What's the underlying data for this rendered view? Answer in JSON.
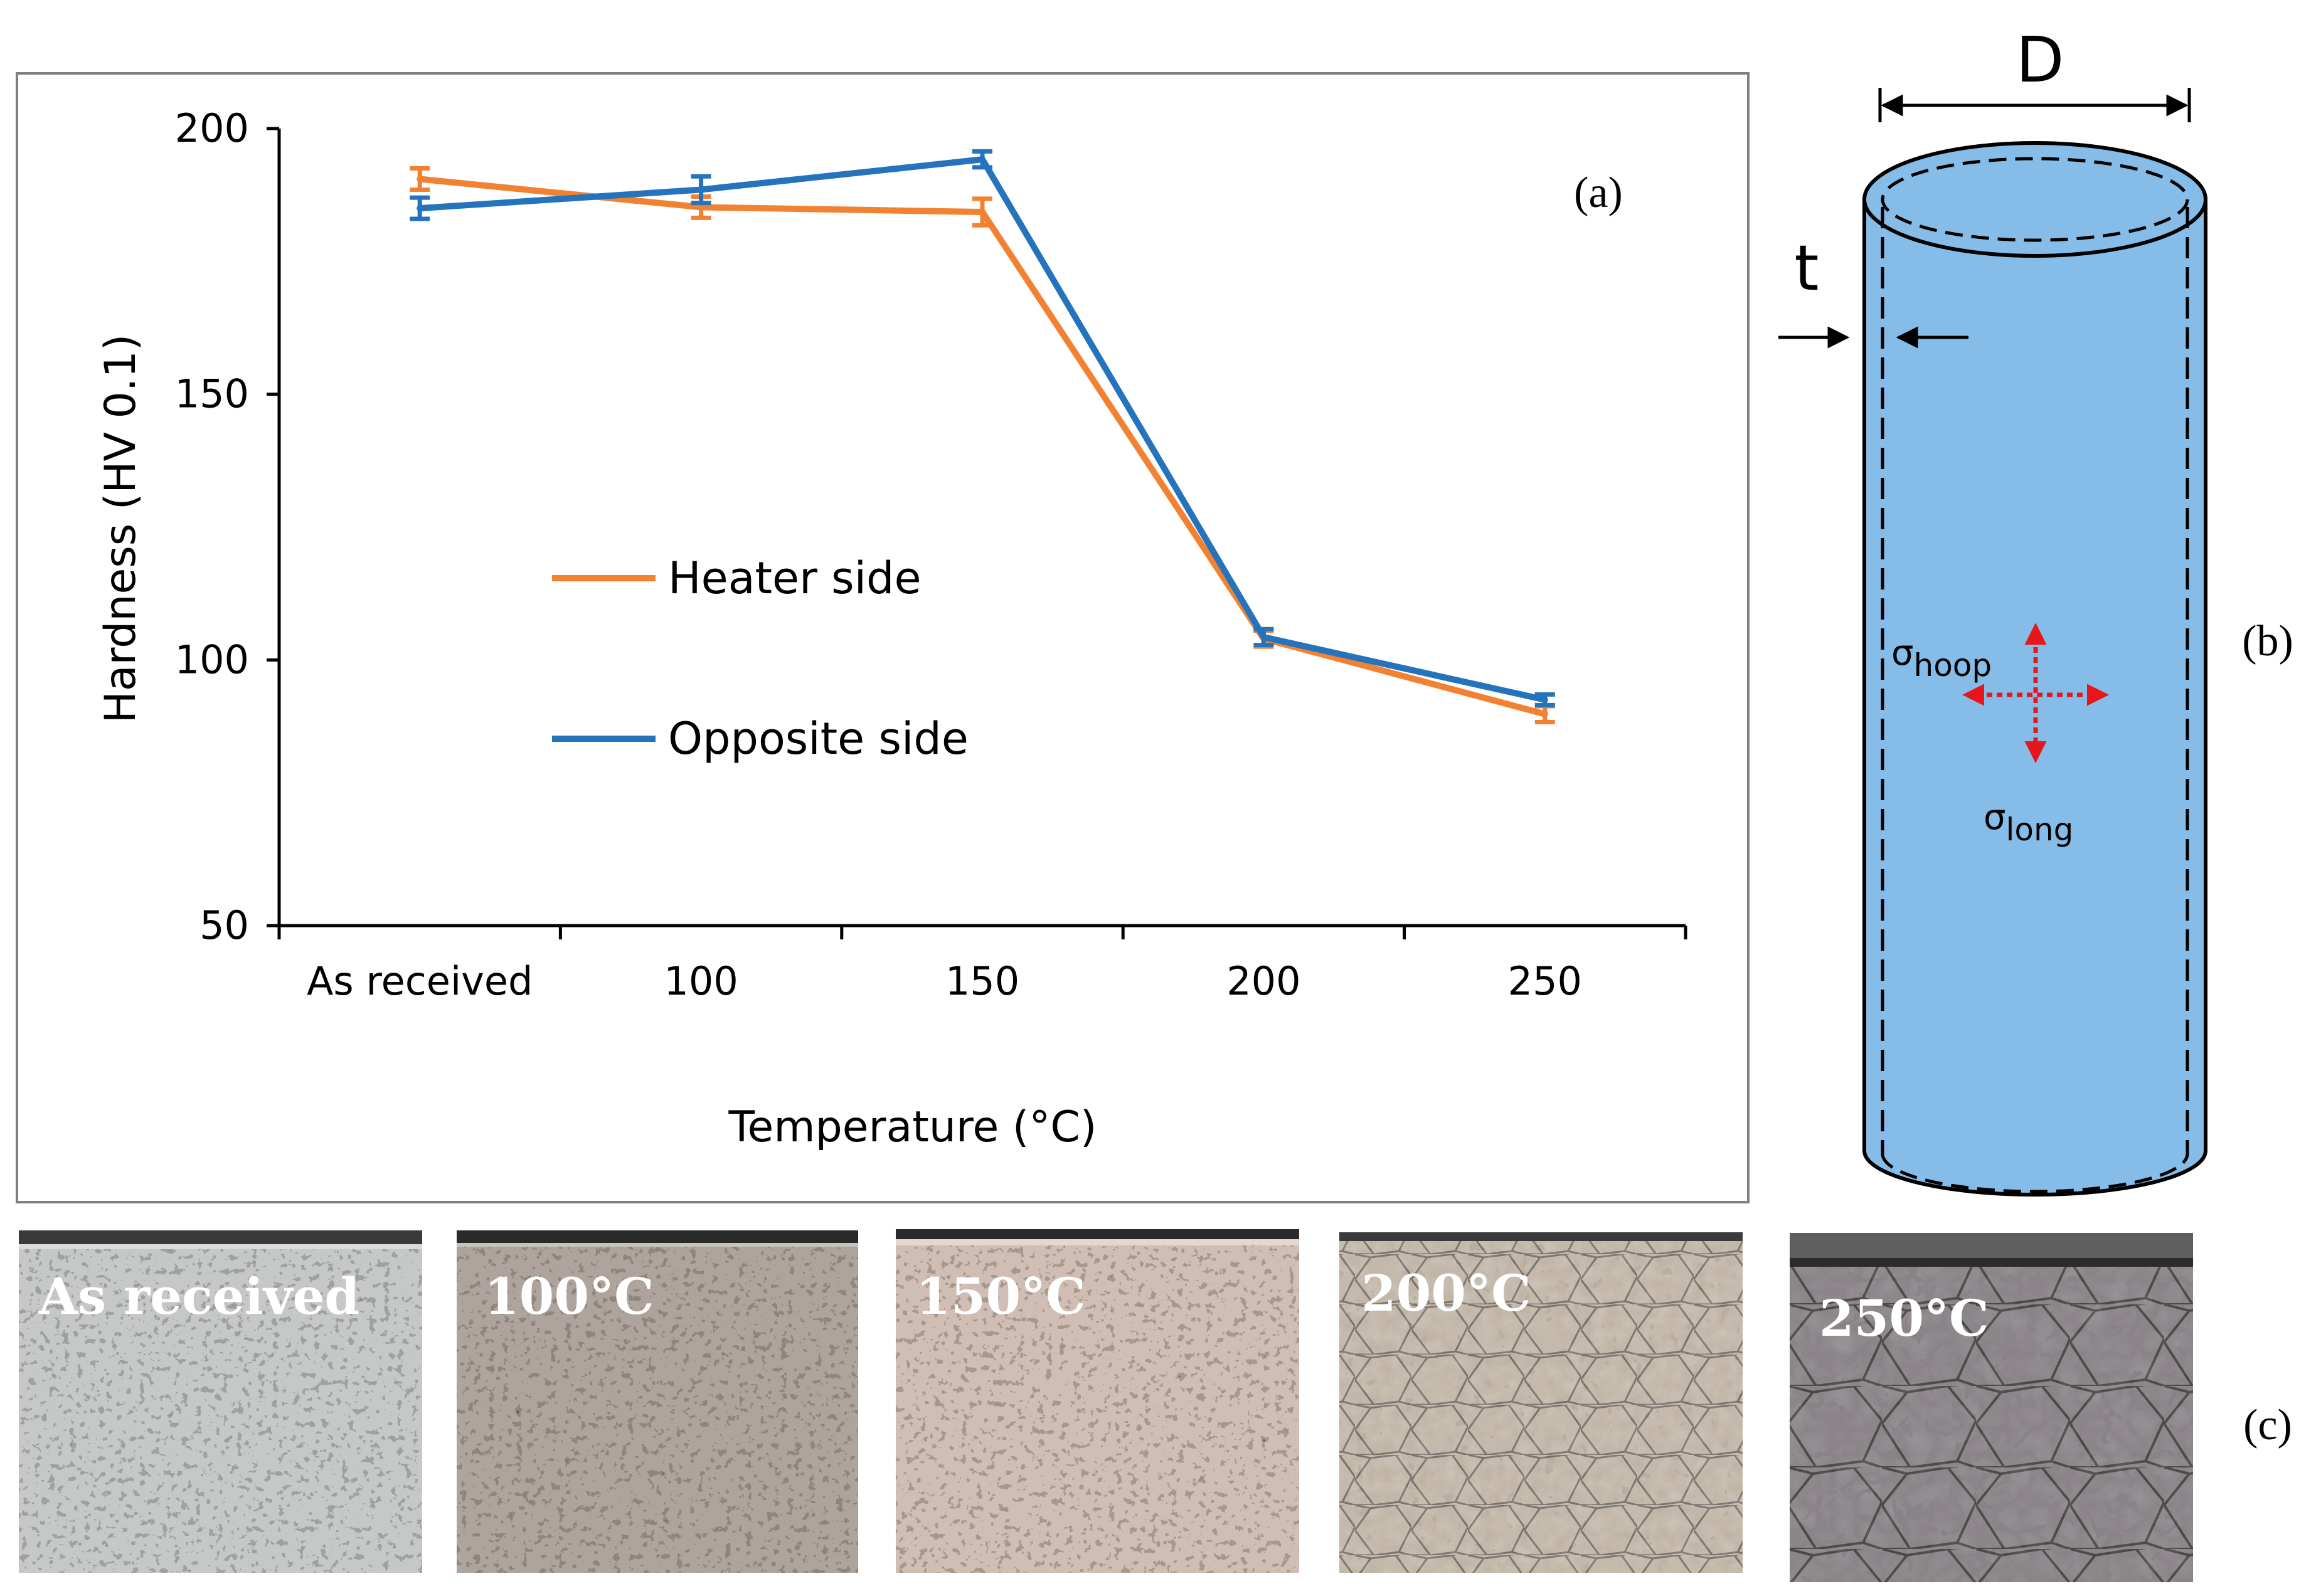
{
  "chart_data": {
    "type": "line",
    "categories": [
      "As received",
      "100",
      "150",
      "200",
      "250"
    ],
    "series": [
      {
        "name": "Heater side",
        "values": [
          190.5,
          185.2,
          184.3,
          104.0,
          89.8
        ],
        "errors": [
          2.0,
          2.0,
          2.5,
          1.5,
          1.5
        ]
      },
      {
        "name": "Opposite side",
        "values": [
          185.0,
          188.5,
          194.2,
          104.3,
          92.5
        ],
        "errors": [
          2.0,
          2.5,
          1.5,
          1.5,
          1.0
        ]
      }
    ],
    "title": "",
    "xlabel": "Temperature (°C)",
    "ylabel": "Hardness  (HV 0.1)",
    "ylim": [
      50,
      200
    ],
    "yticks": [
      "50",
      "100",
      "150",
      "200"
    ],
    "grid": false,
    "legend_position": "center-left",
    "panel_label": "(a)"
  },
  "colors": {
    "heater": "#F28232",
    "opposite": "#2473BC",
    "tube_fill": "#86BDE8",
    "arrow_red": "#E8151B"
  },
  "diagram": {
    "panel_label": "(b)",
    "diameter_label": "D",
    "thickness_label": "t",
    "sigma_hoop": {
      "symbol": "σ",
      "sub": "hoop"
    },
    "sigma_long": {
      "symbol": "σ",
      "sub": "long"
    }
  },
  "micrographs": {
    "panel_label": "(c)",
    "labels": [
      "As received",
      "100°C",
      "150°C",
      "200°C",
      "250°C"
    ]
  }
}
